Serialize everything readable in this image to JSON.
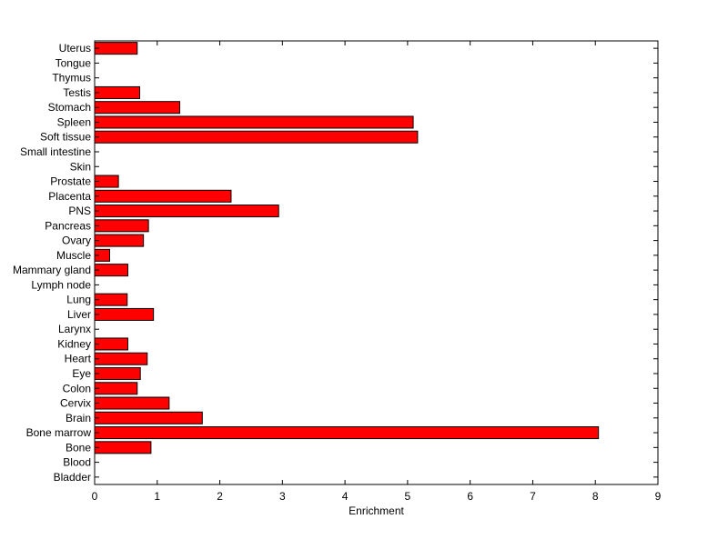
{
  "chart_data": {
    "type": "bar",
    "orientation": "horizontal",
    "title": "",
    "xlabel": "Enrichment",
    "ylabel": "",
    "xlim": [
      0,
      9
    ],
    "xticks": [
      0,
      1,
      2,
      3,
      4,
      5,
      6,
      7,
      8,
      9
    ],
    "grid": false,
    "legend": "none",
    "bar_color": "#ff0000",
    "edge_color": "#000000",
    "categories": [
      "Bladder",
      "Blood",
      "Bone",
      "Bone marrow",
      "Brain",
      "Cervix",
      "Colon",
      "Eye",
      "Heart",
      "Kidney",
      "Larynx",
      "Liver",
      "Lung",
      "Lymph node",
      "Mammary gland",
      "Muscle",
      "Ovary",
      "Pancreas",
      "PNS",
      "Placenta",
      "Prostate",
      "Skin",
      "Small intestine",
      "Soft tissue",
      "Spleen",
      "Stomach",
      "Testis",
      "Thymus",
      "Tongue",
      "Uterus"
    ],
    "values": [
      0,
      0,
      0.9,
      8.05,
      1.72,
      1.19,
      0.68,
      0.73,
      0.84,
      0.53,
      0,
      0.94,
      0.52,
      0,
      0.53,
      0.24,
      0.78,
      0.86,
      2.94,
      2.18,
      0.38,
      0,
      0,
      5.16,
      5.09,
      1.36,
      0.72,
      0,
      0,
      0.68
    ]
  }
}
